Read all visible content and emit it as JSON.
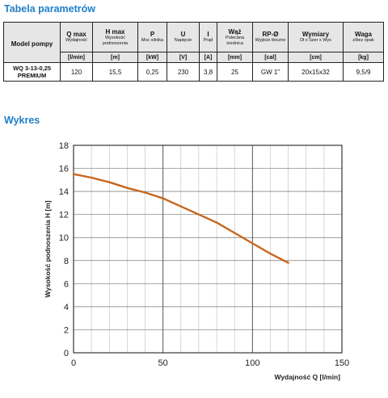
{
  "sections": {
    "params_title": "Tabela parametrów",
    "chart_title": "Wykres"
  },
  "table": {
    "model_header": "Model pompy",
    "columns": [
      {
        "title": "Q max",
        "sub": "Wydajność",
        "unit": "[l/min]",
        "value": "120"
      },
      {
        "title": "H max",
        "sub": "Wysokość podnoszenia",
        "unit": "[m]",
        "value": "15,5"
      },
      {
        "title": "P",
        "sub": "Moc silnika",
        "unit": "[kW]",
        "value": "0,25"
      },
      {
        "title": "U",
        "sub": "Napięcie",
        "unit": "[V]",
        "value": "230"
      },
      {
        "title": "I",
        "sub": "Prąd",
        "unit": "[A]",
        "value": "3,8"
      },
      {
        "title": "Wąż",
        "sub": "Polecana średnica",
        "unit": "[mm]",
        "value": "25"
      },
      {
        "title": "RP-Ø",
        "sub": "Wyjście tłoczne",
        "unit": "[cal]",
        "value": "GW 1\""
      },
      {
        "title": "Wymiary",
        "sub": "Dł x Szer x Wys",
        "unit": "[cm]",
        "value": "20x15x32"
      },
      {
        "title": "Waga",
        "sub": "z/bez opak",
        "unit": "[kg]",
        "value": "9,5/9"
      }
    ],
    "model_value": "WQ 3-13-0,25 PREMIUM"
  },
  "chart_data": {
    "type": "line",
    "xlabel": "Wydajność Q [l/min]",
    "ylabel": "Wysokość podnoszenia H [m]",
    "xlim": [
      0,
      150
    ],
    "ylim": [
      0,
      18
    ],
    "xticks": [
      0,
      50,
      100,
      150
    ],
    "yticks": [
      0,
      2,
      4,
      6,
      8,
      10,
      12,
      14,
      16,
      18
    ],
    "grid": true,
    "series": [
      {
        "color": "#c8661c",
        "x": [
          0,
          10,
          20,
          30,
          40,
          50,
          60,
          70,
          80,
          90,
          100,
          110,
          120
        ],
        "y": [
          15.5,
          15.2,
          14.8,
          14.3,
          13.9,
          13.4,
          12.7,
          12.0,
          11.3,
          10.4,
          9.5,
          8.6,
          7.8
        ]
      }
    ]
  }
}
